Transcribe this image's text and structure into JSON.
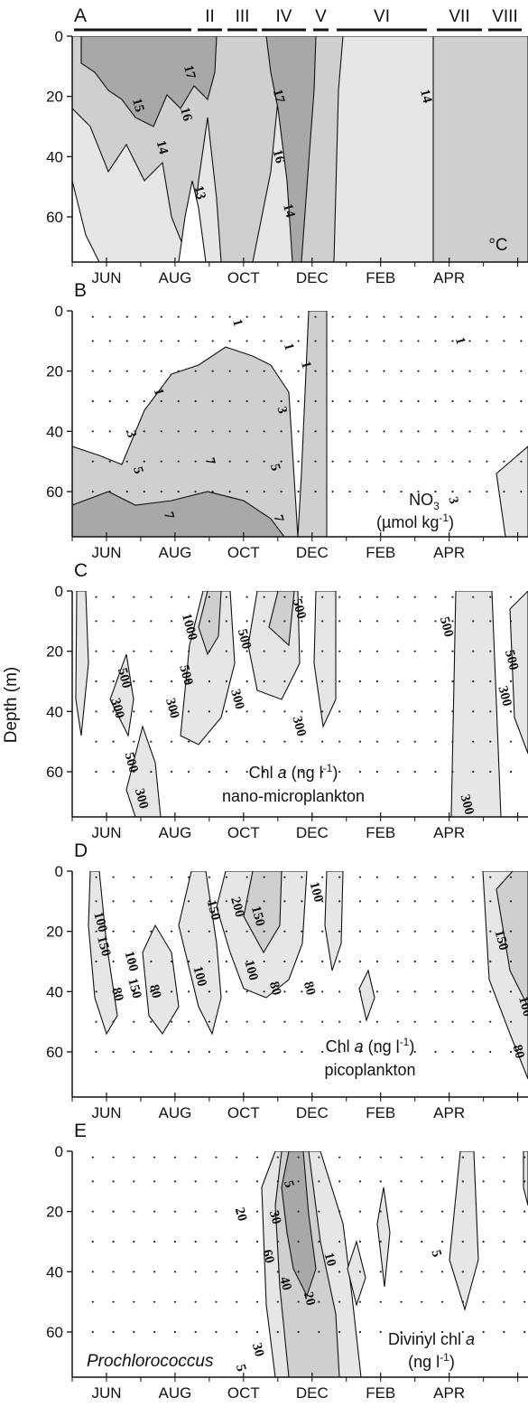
{
  "figure": {
    "y_axis_label": "Depth (m)",
    "colors": {
      "line": "#111111",
      "fill_light": "#e6e6e6",
      "fill_mid": "#cfcfcf",
      "fill_dark": "#a8a8a8",
      "dots": "#222222"
    }
  },
  "chart_data": [
    {
      "type": "heatmap",
      "panel": "A",
      "title": "",
      "xlabel": "",
      "ylabel": "",
      "unit_label": "°C",
      "x_tick_labels": [
        "JUN",
        "AUG",
        "OCT",
        "DEC",
        "FEB",
        "APR"
      ],
      "y_tick_labels": [
        "0",
        "20",
        "40",
        "60"
      ],
      "ylim": [
        75,
        0
      ],
      "period_labels": [
        "II",
        "III",
        "IV",
        "V",
        "VI",
        "VII",
        "VIII"
      ],
      "contour_labels": [
        {
          "text": "17",
          "month": 8.4,
          "depth": 12
        },
        {
          "text": "15",
          "month": 6.9,
          "depth": 23
        },
        {
          "text": "16",
          "month": 8.3,
          "depth": 26
        },
        {
          "text": "14",
          "month": 7.6,
          "depth": 37
        },
        {
          "text": "13",
          "month": 8.7,
          "depth": 52
        },
        {
          "text": "17",
          "month": 11.0,
          "depth": 20
        },
        {
          "text": "16",
          "month": 11.0,
          "depth": 40
        },
        {
          "text": "14",
          "month": 11.3,
          "depth": 58
        },
        {
          "text": "14",
          "month": 15.3,
          "depth": 20
        }
      ]
    },
    {
      "type": "heatmap",
      "panel": "B",
      "title": "",
      "xlabel": "",
      "ylabel": "",
      "variable_label": "NO",
      "variable_sub": "3",
      "unit_label": "(µmol kg",
      "unit_sup": "-1",
      "unit_end": ")",
      "x_tick_labels": [
        "JUN",
        "AUG",
        "OCT",
        "DEC",
        "FEB",
        "APR"
      ],
      "y_tick_labels": [
        "0",
        "20",
        "40",
        "60"
      ],
      "ylim": [
        75,
        0
      ],
      "contour_labels": [
        {
          "text": "1",
          "month": 9.8,
          "depth": 4
        },
        {
          "text": "1",
          "month": 7.5,
          "depth": 27
        },
        {
          "text": "3",
          "month": 6.7,
          "depth": 41
        },
        {
          "text": "5",
          "month": 6.9,
          "depth": 53
        },
        {
          "text": "7",
          "month": 9.0,
          "depth": 50
        },
        {
          "text": "7",
          "month": 7.8,
          "depth": 68
        },
        {
          "text": "1",
          "month": 11.3,
          "depth": 12
        },
        {
          "text": "3",
          "month": 11.1,
          "depth": 33
        },
        {
          "text": "5",
          "month": 10.9,
          "depth": 52
        },
        {
          "text": "7",
          "month": 11.0,
          "depth": 69
        },
        {
          "text": "1",
          "month": 11.8,
          "depth": 18
        },
        {
          "text": "1",
          "month": 16.3,
          "depth": 10
        },
        {
          "text": "3",
          "month": 16.1,
          "depth": 63
        }
      ]
    },
    {
      "type": "heatmap",
      "panel": "C",
      "title": "",
      "xlabel": "",
      "ylabel": "",
      "variable_label": "Chl ",
      "variable_italic": "a",
      "unit_label": " (ng l",
      "unit_sup": "-1",
      "unit_end": ")",
      "subtitle": "nano-microplankton",
      "x_tick_labels": [
        "JUN",
        "AUG",
        "OCT",
        "DEC",
        "FEB",
        "APR"
      ],
      "y_tick_labels": [
        "0",
        "20",
        "40",
        "60"
      ],
      "ylim": [
        75,
        0
      ],
      "contour_labels": [
        {
          "text": "500",
          "month": 6.5,
          "depth": 29
        },
        {
          "text": "300",
          "month": 6.3,
          "depth": 39
        },
        {
          "text": "500",
          "month": 6.7,
          "depth": 57
        },
        {
          "text": "300",
          "month": 7.0,
          "depth": 69
        },
        {
          "text": "1000",
          "month": 8.4,
          "depth": 12
        },
        {
          "text": "500",
          "month": 8.3,
          "depth": 28
        },
        {
          "text": "300",
          "month": 7.9,
          "depth": 39
        },
        {
          "text": "500",
          "month": 10.0,
          "depth": 16
        },
        {
          "text": "300",
          "month": 9.8,
          "depth": 36
        },
        {
          "text": "500",
          "month": 11.6,
          "depth": 6
        },
        {
          "text": "300",
          "month": 11.6,
          "depth": 45
        },
        {
          "text": "500",
          "month": 15.9,
          "depth": 12
        },
        {
          "text": "300",
          "month": 16.5,
          "depth": 71
        },
        {
          "text": "500",
          "month": 17.8,
          "depth": 23
        },
        {
          "text": "300",
          "month": 17.6,
          "depth": 35
        }
      ]
    },
    {
      "type": "heatmap",
      "panel": "D",
      "title": "",
      "xlabel": "",
      "ylabel": "",
      "variable_label": "Chl ",
      "variable_italic": "a",
      "unit_label": " (ng l",
      "unit_sup": "-1",
      "unit_end": ")",
      "subtitle": "picoplankton",
      "x_tick_labels": [
        "JUN",
        "AUG",
        "OCT",
        "DEC",
        "FEB",
        "APR"
      ],
      "y_tick_labels": [
        "0",
        "20",
        "40",
        "60"
      ],
      "ylim": [
        75,
        0
      ],
      "contour_labels": [
        {
          "text": "100",
          "month": 5.8,
          "depth": 17
        },
        {
          "text": "150",
          "month": 5.9,
          "depth": 25
        },
        {
          "text": "80",
          "month": 6.3,
          "depth": 41
        },
        {
          "text": "100",
          "month": 6.7,
          "depth": 30
        },
        {
          "text": "150",
          "month": 6.8,
          "depth": 39
        },
        {
          "text": "80",
          "month": 7.4,
          "depth": 40
        },
        {
          "text": "100",
          "month": 8.7,
          "depth": 35
        },
        {
          "text": "150",
          "month": 9.1,
          "depth": 13
        },
        {
          "text": "200",
          "month": 9.8,
          "depth": 12
        },
        {
          "text": "150",
          "month": 10.4,
          "depth": 15
        },
        {
          "text": "100",
          "month": 10.2,
          "depth": 33
        },
        {
          "text": "80",
          "month": 10.9,
          "depth": 39
        },
        {
          "text": "100",
          "month": 12.1,
          "depth": 7
        },
        {
          "text": "80",
          "month": 11.9,
          "depth": 39
        },
        {
          "text": "150",
          "month": 17.5,
          "depth": 23
        },
        {
          "text": "100",
          "month": 18.2,
          "depth": 45
        },
        {
          "text": "80",
          "month": 18.0,
          "depth": 60
        }
      ]
    },
    {
      "type": "heatmap",
      "panel": "E",
      "title": "",
      "xlabel": "",
      "ylabel": "",
      "variable_label": "Divinyl chl ",
      "variable_italic": "a",
      "unit_label": "(ng l",
      "unit_sup": "-1",
      "unit_end": ")",
      "organism_label": "Prochlorococcus",
      "x_tick_labels": [
        "JUN",
        "AUG",
        "OCT",
        "DEC",
        "FEB",
        "APR"
      ],
      "y_tick_labels": [
        "0",
        "20",
        "40",
        "60"
      ],
      "ylim": [
        75,
        0
      ],
      "contour_labels": [
        {
          "text": "5",
          "month": 11.3,
          "depth": 11
        },
        {
          "text": "20",
          "month": 9.9,
          "depth": 21
        },
        {
          "text": "30",
          "month": 10.9,
          "depth": 22
        },
        {
          "text": "60",
          "month": 10.7,
          "depth": 35
        },
        {
          "text": "40",
          "month": 11.2,
          "depth": 44
        },
        {
          "text": "20",
          "month": 11.9,
          "depth": 49
        },
        {
          "text": "10",
          "month": 12.5,
          "depth": 36
        },
        {
          "text": "30",
          "month": 10.4,
          "depth": 66
        },
        {
          "text": "5",
          "month": 9.9,
          "depth": 72
        },
        {
          "text": "5",
          "month": 15.6,
          "depth": 34
        }
      ]
    }
  ]
}
